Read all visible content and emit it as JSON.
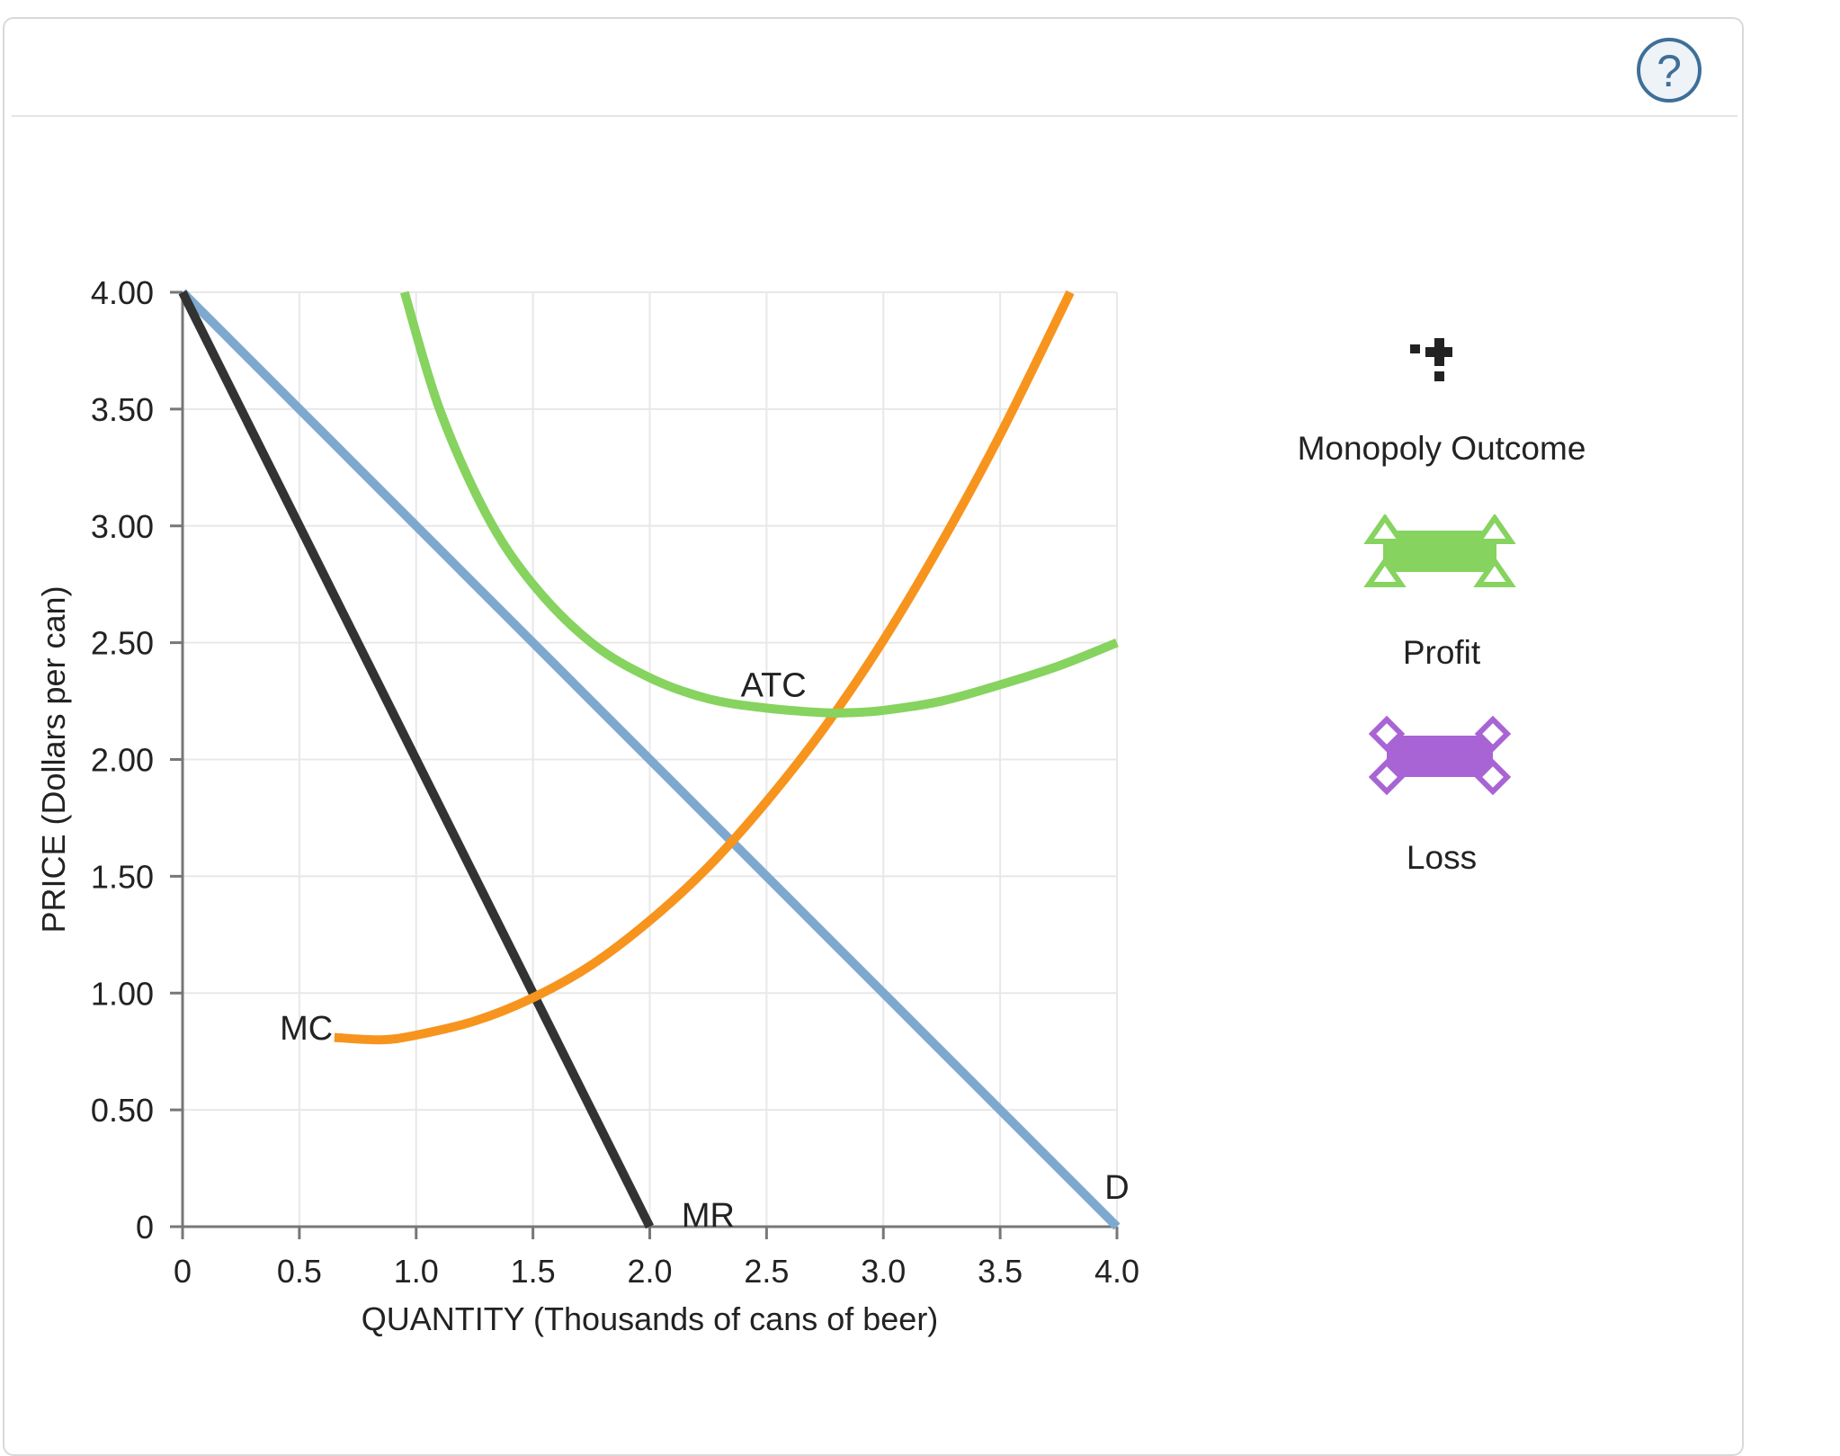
{
  "help": {
    "label": "?"
  },
  "legend": {
    "items": [
      {
        "label": "Monopoly Outcome",
        "icon": "black-plus-point-icon",
        "color": "#222222"
      },
      {
        "label": "Profit",
        "icon": "green-rectangle-triangles-icon",
        "color": "#86d35f"
      },
      {
        "label": "Loss",
        "icon": "purple-rectangle-diamonds-icon",
        "color": "#a864d4"
      }
    ]
  },
  "chart_data": {
    "type": "line",
    "xlabel": "QUANTITY (Thousands of cans of beer)",
    "ylabel": "PRICE (Dollars per can)",
    "xlim": [
      0,
      4.0
    ],
    "ylim": [
      0,
      4.0
    ],
    "x_ticks": [
      "0",
      "0.5",
      "1.0",
      "1.5",
      "2.0",
      "2.5",
      "3.0",
      "3.5",
      "4.0"
    ],
    "y_ticks": [
      "0",
      "0.50",
      "1.00",
      "1.50",
      "2.00",
      "2.50",
      "3.00",
      "3.50",
      "4.00"
    ],
    "grid": true,
    "series": [
      {
        "name": "D",
        "color": "#7fa8d1",
        "x": [
          0,
          4.0
        ],
        "y": [
          4.0,
          0
        ]
      },
      {
        "name": "MR",
        "color": "#333333",
        "x": [
          0,
          2.0
        ],
        "y": [
          4.0,
          0
        ]
      },
      {
        "name": "MC",
        "color": "#f7941d",
        "x": [
          0.65,
          0.85,
          1.0,
          1.25,
          1.5,
          1.75,
          2.0,
          2.25,
          2.5,
          2.75,
          3.0,
          3.25,
          3.5,
          3.8
        ],
        "y": [
          0.81,
          0.8,
          0.82,
          0.88,
          0.98,
          1.12,
          1.31,
          1.54,
          1.82,
          2.14,
          2.51,
          2.93,
          3.39,
          4.0
        ]
      },
      {
        "name": "ATC",
        "color": "#86d35f",
        "x": [
          0.95,
          1.1,
          1.3,
          1.5,
          1.75,
          2.0,
          2.25,
          2.5,
          2.75,
          2.85,
          3.0,
          3.25,
          3.5,
          3.75,
          4.0
        ],
        "y": [
          4.0,
          3.5,
          3.05,
          2.75,
          2.5,
          2.35,
          2.26,
          2.22,
          2.2,
          2.2,
          2.21,
          2.25,
          2.32,
          2.4,
          2.5
        ]
      }
    ],
    "annotations": [
      {
        "text": "D",
        "x": 4.0,
        "y": 0.12
      },
      {
        "text": "MR",
        "x": 2.25,
        "y": 0.0
      },
      {
        "text": "MC",
        "x": 0.53,
        "y": 0.8
      },
      {
        "text": "ATC",
        "x": 2.53,
        "y": 2.27
      }
    ]
  }
}
